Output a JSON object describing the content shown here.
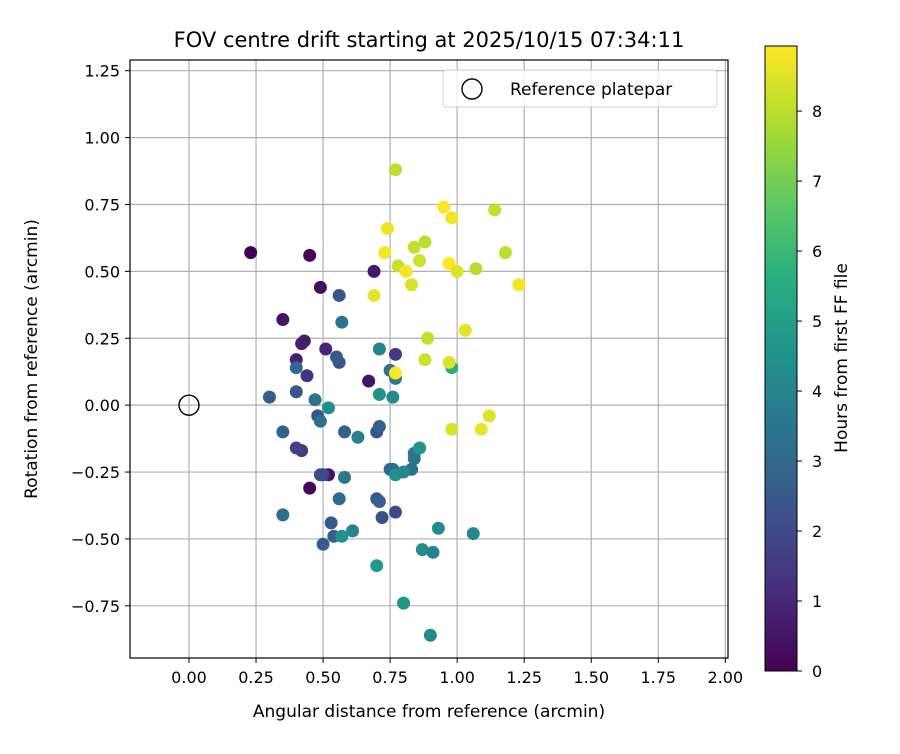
{
  "chart_data": {
    "type": "scatter",
    "title": "FOV centre drift starting at 2025/10/15 07:34:11",
    "xlabel": "Angular distance from reference (arcmin)",
    "ylabel": "Rotation from reference (arcmin)",
    "xlim": [
      -0.22,
      2.01
    ],
    "ylim": [
      -0.945,
      1.29
    ],
    "xticks": [
      "0.00",
      "0.25",
      "0.50",
      "0.75",
      "1.00",
      "1.25",
      "1.50",
      "1.75",
      "2.00"
    ],
    "yticks": [
      "1.25",
      "1.00",
      "0.75",
      "0.50",
      "0.25",
      "0.00",
      "−0.25",
      "−0.50",
      "−0.75"
    ],
    "grid": true,
    "legend": {
      "placement": "top-right",
      "entries": [
        "Reference platepar"
      ]
    },
    "reference_point": {
      "x": 0.0,
      "y": 0.0
    },
    "colorbar": {
      "label": "Hours from first FF file",
      "colormap": "viridis",
      "range": [
        0,
        8.93
      ],
      "ticks": [
        "0",
        "1",
        "2",
        "3",
        "4",
        "5",
        "6",
        "7",
        "8"
      ]
    },
    "points": [
      {
        "x": 0.23,
        "y": 0.57,
        "h": 0.0
      },
      {
        "x": 0.45,
        "y": 0.56,
        "h": 0.1
      },
      {
        "x": 0.49,
        "y": 0.44,
        "h": 0.3
      },
      {
        "x": 0.35,
        "y": 0.32,
        "h": 0.5
      },
      {
        "x": 0.43,
        "y": 0.24,
        "h": 0.6
      },
      {
        "x": 0.42,
        "y": 0.23,
        "h": 0.7
      },
      {
        "x": 0.4,
        "y": 0.17,
        "h": 0.8
      },
      {
        "x": 0.51,
        "y": 0.21,
        "h": 1.0
      },
      {
        "x": 0.44,
        "y": 0.11,
        "h": 1.3
      },
      {
        "x": 0.45,
        "y": -0.31,
        "h": 0.2
      },
      {
        "x": 0.52,
        "y": -0.26,
        "h": 0.4
      },
      {
        "x": 0.67,
        "y": 0.09,
        "h": 0.5
      },
      {
        "x": 0.69,
        "y": 0.5,
        "h": 0.6
      },
      {
        "x": 0.77,
        "y": 0.19,
        "h": 1.5
      },
      {
        "x": 0.42,
        "y": -0.17,
        "h": 1.6
      },
      {
        "x": 0.4,
        "y": -0.16,
        "h": 1.8
      },
      {
        "x": 0.5,
        "y": -0.26,
        "h": 1.9
      },
      {
        "x": 0.49,
        "y": -0.26,
        "h": 2.1
      },
      {
        "x": 0.56,
        "y": 0.41,
        "h": 2.3
      },
      {
        "x": 0.56,
        "y": 0.16,
        "h": 2.4
      },
      {
        "x": 0.55,
        "y": 0.18,
        "h": 2.5
      },
      {
        "x": 0.3,
        "y": 0.03,
        "h": 2.6
      },
      {
        "x": 0.4,
        "y": 0.05,
        "h": 2.4
      },
      {
        "x": 0.48,
        "y": -0.04,
        "h": 2.2
      },
      {
        "x": 0.35,
        "y": -0.1,
        "h": 2.8
      },
      {
        "x": 0.58,
        "y": -0.1,
        "h": 2.9
      },
      {
        "x": 0.7,
        "y": -0.1,
        "h": 2.3
      },
      {
        "x": 0.71,
        "y": -0.08,
        "h": 2.7
      },
      {
        "x": 0.7,
        "y": -0.35,
        "h": 2.5
      },
      {
        "x": 0.71,
        "y": -0.36,
        "h": 2.6
      },
      {
        "x": 0.72,
        "y": -0.42,
        "h": 2.2
      },
      {
        "x": 0.77,
        "y": -0.4,
        "h": 2.0
      },
      {
        "x": 0.53,
        "y": -0.44,
        "h": 2.5
      },
      {
        "x": 0.54,
        "y": -0.49,
        "h": 2.7
      },
      {
        "x": 0.5,
        "y": -0.52,
        "h": 2.6
      },
      {
        "x": 0.35,
        "y": -0.41,
        "h": 3.2
      },
      {
        "x": 0.56,
        "y": -0.35,
        "h": 3.1
      },
      {
        "x": 0.4,
        "y": 0.14,
        "h": 3.0
      },
      {
        "x": 0.57,
        "y": 0.31,
        "h": 3.4
      },
      {
        "x": 0.47,
        "y": 0.02,
        "h": 3.3
      },
      {
        "x": 0.49,
        "y": -0.06,
        "h": 3.2
      },
      {
        "x": 0.75,
        "y": -0.24,
        "h": 3.1
      },
      {
        "x": 0.76,
        "y": -0.24,
        "h": 3.0
      },
      {
        "x": 0.83,
        "y": -0.24,
        "h": 3.2
      },
      {
        "x": 0.84,
        "y": -0.2,
        "h": 3.4
      },
      {
        "x": 0.84,
        "y": -0.18,
        "h": 3.5
      },
      {
        "x": 0.75,
        "y": 0.13,
        "h": 3.3
      },
      {
        "x": 0.77,
        "y": 0.1,
        "h": 3.7
      },
      {
        "x": 0.58,
        "y": -0.27,
        "h": 3.6
      },
      {
        "x": 0.63,
        "y": -0.12,
        "h": 3.8
      },
      {
        "x": 0.71,
        "y": 0.21,
        "h": 4.0
      },
      {
        "x": 0.52,
        "y": -0.01,
        "h": 4.3
      },
      {
        "x": 0.71,
        "y": 0.04,
        "h": 4.5
      },
      {
        "x": 0.76,
        "y": 0.03,
        "h": 4.2
      },
      {
        "x": 0.77,
        "y": -0.26,
        "h": 4.4
      },
      {
        "x": 0.8,
        "y": -0.25,
        "h": 4.1
      },
      {
        "x": 0.86,
        "y": -0.16,
        "h": 4.6
      },
      {
        "x": 0.57,
        "y": -0.49,
        "h": 4.5
      },
      {
        "x": 0.61,
        "y": -0.47,
        "h": 4.0
      },
      {
        "x": 0.7,
        "y": -0.6,
        "h": 4.8
      },
      {
        "x": 0.8,
        "y": -0.74,
        "h": 4.6
      },
      {
        "x": 0.9,
        "y": -0.86,
        "h": 4.2
      },
      {
        "x": 0.87,
        "y": -0.54,
        "h": 4.4
      },
      {
        "x": 0.91,
        "y": -0.55,
        "h": 4.0
      },
      {
        "x": 0.93,
        "y": -0.46,
        "h": 4.3
      },
      {
        "x": 1.06,
        "y": -0.48,
        "h": 4.1
      },
      {
        "x": 0.98,
        "y": 0.14,
        "h": 5.5
      },
      {
        "x": 0.77,
        "y": 0.88,
        "h": 8.0
      },
      {
        "x": 0.74,
        "y": 0.66,
        "h": 8.7
      },
      {
        "x": 0.73,
        "y": 0.57,
        "h": 8.8
      },
      {
        "x": 0.69,
        "y": 0.41,
        "h": 8.6
      },
      {
        "x": 0.78,
        "y": 0.52,
        "h": 8.2
      },
      {
        "x": 0.81,
        "y": 0.5,
        "h": 8.8
      },
      {
        "x": 0.83,
        "y": 0.45,
        "h": 8.4
      },
      {
        "x": 0.84,
        "y": 0.59,
        "h": 8.1
      },
      {
        "x": 0.86,
        "y": 0.54,
        "h": 8.3
      },
      {
        "x": 0.88,
        "y": 0.61,
        "h": 8.0
      },
      {
        "x": 0.89,
        "y": 0.25,
        "h": 8.1
      },
      {
        "x": 0.88,
        "y": 0.17,
        "h": 8.2
      },
      {
        "x": 0.95,
        "y": 0.74,
        "h": 8.9
      },
      {
        "x": 0.98,
        "y": 0.7,
        "h": 8.8
      },
      {
        "x": 0.97,
        "y": 0.53,
        "h": 8.9
      },
      {
        "x": 1.0,
        "y": 0.5,
        "h": 8.5
      },
      {
        "x": 1.03,
        "y": 0.28,
        "h": 8.6
      },
      {
        "x": 0.97,
        "y": 0.16,
        "h": 8.5
      },
      {
        "x": 0.98,
        "y": -0.09,
        "h": 8.4
      },
      {
        "x": 1.07,
        "y": 0.51,
        "h": 7.9
      },
      {
        "x": 1.09,
        "y": -0.09,
        "h": 8.6
      },
      {
        "x": 1.12,
        "y": -0.04,
        "h": 8.5
      },
      {
        "x": 1.14,
        "y": 0.73,
        "h": 8.1
      },
      {
        "x": 1.18,
        "y": 0.57,
        "h": 8.0
      },
      {
        "x": 1.23,
        "y": 0.45,
        "h": 8.8
      },
      {
        "x": 0.77,
        "y": 0.12,
        "h": 8.9
      }
    ]
  }
}
